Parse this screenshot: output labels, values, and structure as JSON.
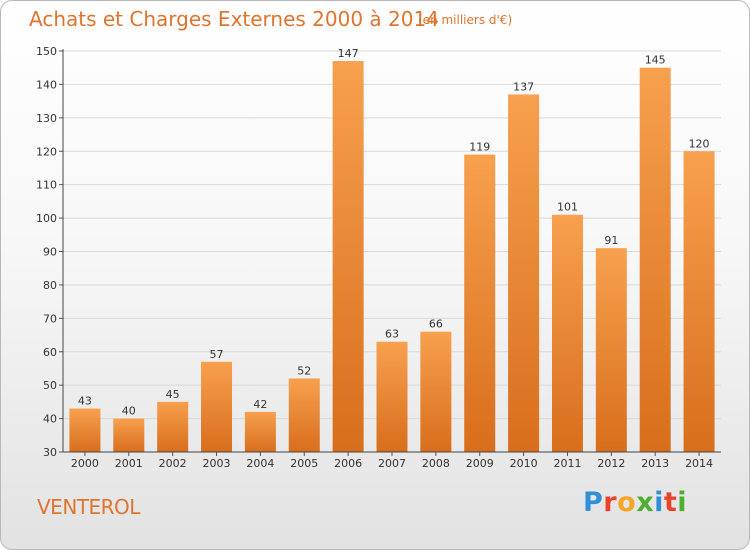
{
  "header": {
    "title": "Achats et Charges Externes 2000 à 2014",
    "unit": "(en milliers d'€)"
  },
  "footer": {
    "commune": "VENTEROL",
    "logo_letters": [
      {
        "char": "P",
        "color": "#2f8fd8"
      },
      {
        "char": "r",
        "color": "#e9442a"
      },
      {
        "char": "o",
        "color": "#f5a623"
      },
      {
        "char": "x",
        "color": "#4caf2f"
      },
      {
        "char": "i",
        "color": "#2f8fd8"
      },
      {
        "char": "t",
        "color": "#e9442a"
      },
      {
        "char": "i",
        "color": "#4caf2f"
      }
    ]
  },
  "colors": {
    "bar_light": "#f7a04e",
    "bar_dark": "#d86e1c",
    "accent_text": "#e0742e",
    "grid": "#d9d9d9"
  },
  "chart_data": {
    "type": "bar",
    "title": "Achats et Charges Externes 2000 à 2014",
    "subtitle": "(en milliers d'€)",
    "categories": [
      "2000",
      "2001",
      "2002",
      "2003",
      "2004",
      "2005",
      "2006",
      "2007",
      "2008",
      "2009",
      "2010",
      "2011",
      "2012",
      "2013",
      "2014"
    ],
    "values": [
      43,
      40,
      45,
      57,
      42,
      52,
      147,
      63,
      66,
      119,
      137,
      101,
      91,
      145,
      120
    ],
    "ylim": [
      30,
      150
    ],
    "yticks": [
      30,
      40,
      50,
      60,
      70,
      80,
      90,
      100,
      110,
      120,
      130,
      140,
      150
    ],
    "grid": true,
    "data_labels": true
  }
}
